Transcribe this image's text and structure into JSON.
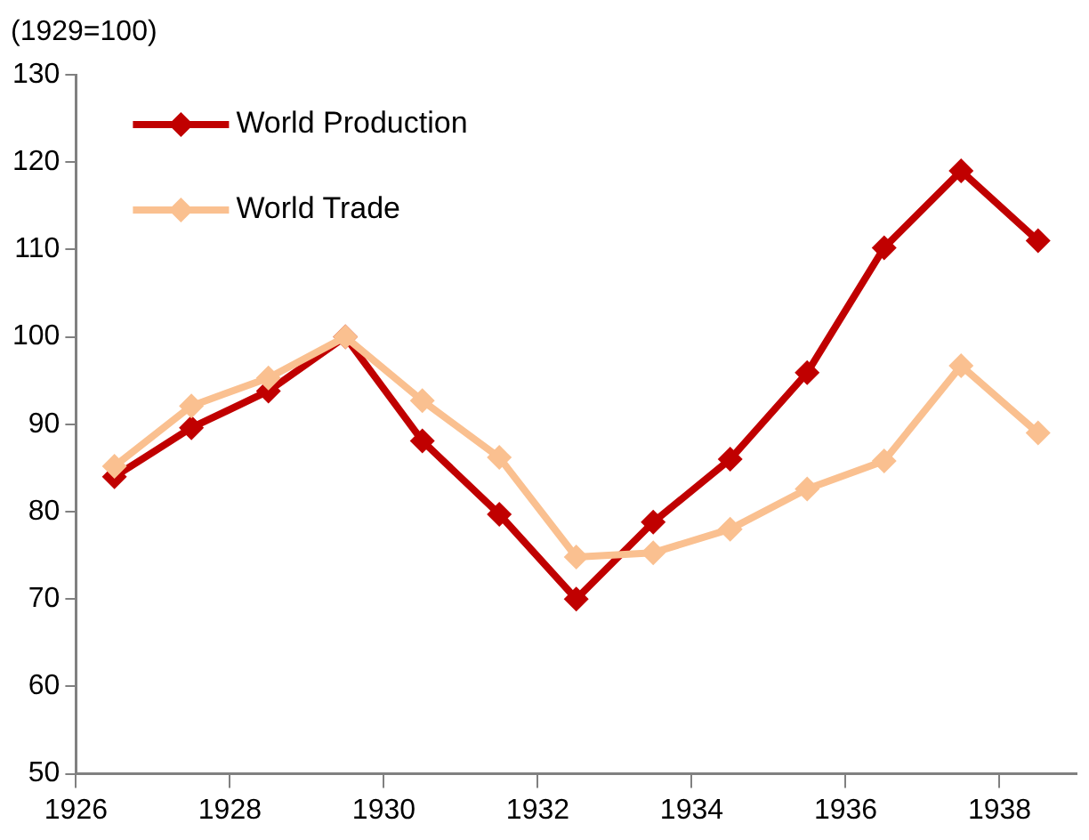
{
  "chart_data": {
    "type": "line",
    "ylabel": "(1929=100)",
    "x": [
      1926.5,
      1927.5,
      1928.5,
      1929.5,
      1930.5,
      1931.5,
      1932.5,
      1933.5,
      1934.5,
      1935.5,
      1936.5,
      1937.5,
      1938.5
    ],
    "series": [
      {
        "name": "World Production",
        "color": "#c00000",
        "values": [
          84,
          89.6,
          93.8,
          100,
          88.1,
          79.7,
          70,
          78.8,
          86,
          95.9,
          110.2,
          119,
          111
        ]
      },
      {
        "name": "World Trade",
        "color": "#fac090",
        "values": [
          85.2,
          92.1,
          95.3,
          100,
          92.7,
          86.2,
          74.8,
          75.3,
          78,
          82.6,
          85.8,
          96.7,
          89
        ]
      }
    ],
    "xlim": [
      1926,
      1939
    ],
    "xticks": [
      1926,
      1928,
      1930,
      1932,
      1934,
      1936,
      1938
    ],
    "ylim": [
      50,
      130
    ],
    "yticks": [
      50,
      60,
      70,
      80,
      90,
      100,
      110,
      120,
      130
    ],
    "grid": false,
    "legend": "top left",
    "marker": "diamond",
    "line_style": "solid"
  }
}
